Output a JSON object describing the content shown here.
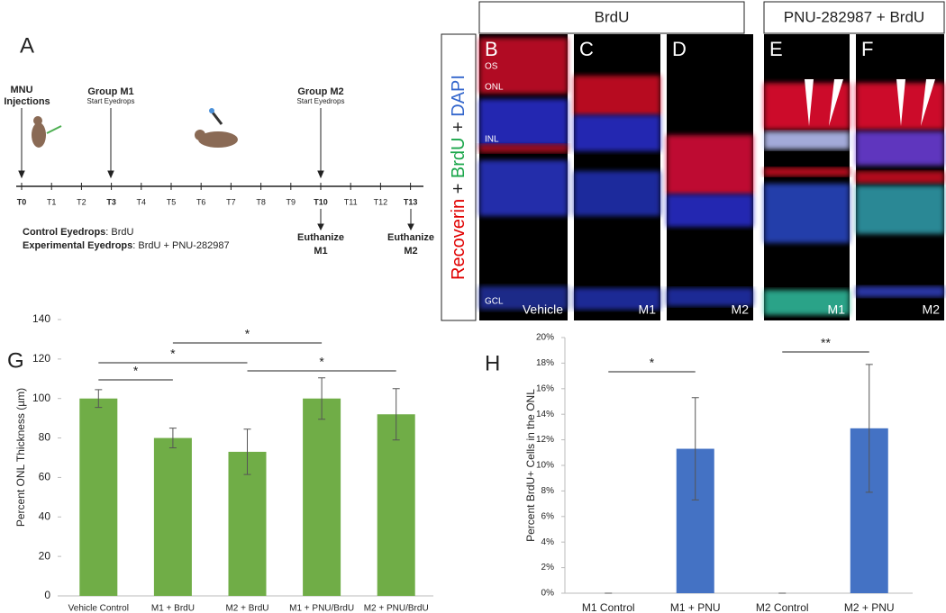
{
  "panel_a": {
    "letter": "A",
    "ticks": [
      "T0",
      "T1",
      "T2",
      "T3",
      "T4",
      "T5",
      "T6",
      "T7",
      "T8",
      "T9",
      "T10",
      "T11",
      "T12",
      "T13"
    ],
    "events": [
      {
        "lines": [
          "MNU",
          "Injections"
        ]
      },
      {
        "title": "Group M1",
        "note": "Start Eyedrops"
      },
      {
        "title": "Group M2",
        "note": "Start Eyedrops"
      },
      {
        "lines": [
          "Euthanize",
          "M1"
        ]
      },
      {
        "lines": [
          "Euthanize",
          "M2"
        ]
      }
    ],
    "legend": [
      {
        "label": "Control Eyedrops",
        "text": ": BrdU"
      },
      {
        "label": "Experimental Eyedrops",
        "text": ": BrdU + PNU-282987"
      }
    ]
  },
  "images": {
    "group_headers": [
      "BrdU",
      "PNU-282987 + BrdU"
    ],
    "stain_label": [
      "Recoverin",
      " + ",
      "BrdU",
      " + ",
      "DAPI"
    ],
    "layers": [
      "OS",
      "ONL",
      "INL",
      "GCL"
    ],
    "panels": [
      {
        "letter": "B",
        "condition": "Vehicle"
      },
      {
        "letter": "C",
        "condition": "M1"
      },
      {
        "letter": "D",
        "condition": "M2"
      },
      {
        "letter": "E",
        "condition": "M1"
      },
      {
        "letter": "F",
        "condition": "M2"
      }
    ]
  },
  "chart_data": [
    {
      "type": "bar",
      "letter": "G",
      "y_label": "Percent ONL Thickness (µm)",
      "color": "#70ad47",
      "categories": [
        "Vehicle Control",
        "M1 + BrdU",
        "M2 + BrdU",
        "M1 + PNU/BrdU",
        "M2 + PNU/BrdU"
      ],
      "values": [
        100,
        80,
        73,
        100,
        92
      ],
      "errors": [
        4.5,
        5,
        11.5,
        10.5,
        13
      ],
      "ylim": [
        0,
        140
      ],
      "yticks": [
        0,
        20,
        40,
        60,
        80,
        100,
        120,
        140
      ],
      "annotations": [
        {
          "label": "*",
          "from": "Vehicle Control",
          "to": "M1 + BrdU"
        },
        {
          "label": "*",
          "from": "Vehicle Control",
          "to": "M2 + BrdU"
        },
        {
          "label": "*",
          "from": "M1 + BrdU",
          "to": "M1 + PNU/BrdU"
        },
        {
          "label": "*",
          "from": "M2 + BrdU",
          "to": "M2 + PNU/BrdU"
        }
      ]
    },
    {
      "type": "bar",
      "letter": "H",
      "y_label": "Percent BrdU+ Cells in the ONL",
      "color": "#4472c4",
      "categories": [
        "M1 Control",
        "M1 + PNU",
        "M2 Control",
        "M2 + PNU"
      ],
      "values": [
        0,
        11.3,
        0,
        12.9
      ],
      "errors": [
        0,
        4,
        0,
        5
      ],
      "ylim": [
        0,
        20
      ],
      "yticks": [
        {
          "value": 0,
          "label": "0%"
        },
        {
          "value": 2,
          "label": "2%"
        },
        {
          "value": 4,
          "label": "4%"
        },
        {
          "value": 6,
          "label": "6%"
        },
        {
          "value": 8,
          "label": "8%"
        },
        {
          "value": 10,
          "label": "10%"
        },
        {
          "value": 12,
          "label": "12%"
        },
        {
          "value": 14,
          "label": "14%"
        },
        {
          "value": 16,
          "label": "16%"
        },
        {
          "value": 18,
          "label": "18%"
        },
        {
          "value": 20,
          "label": "20%"
        }
      ],
      "annotations": [
        {
          "label": "*",
          "from": "M1 Control",
          "to": "M1 + PNU"
        },
        {
          "label": "**",
          "from": "M2 Control",
          "to": "M2 + PNU"
        }
      ]
    }
  ]
}
